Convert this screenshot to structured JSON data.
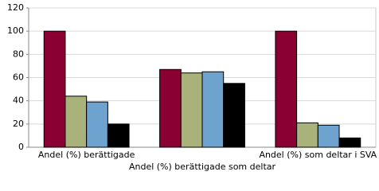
{
  "chart_data": {
    "type": "bar",
    "categories": [
      "Andel (%) berättigade",
      "Andel (%) berättigade som deltar",
      "Andel (%) som deltar i SVA"
    ],
    "series": [
      {
        "color": "#8b0033",
        "values": [
          100,
          67,
          100
        ]
      },
      {
        "color": "#a9b27a",
        "values": [
          44,
          64,
          21
        ]
      },
      {
        "color": "#6fa3cf",
        "values": [
          39,
          65,
          19
        ]
      },
      {
        "color": "#000000",
        "values": [
          20,
          55,
          8
        ]
      }
    ],
    "ylim": [
      0,
      120
    ],
    "yticks": [
      0,
      20,
      40,
      60,
      80,
      100,
      120
    ],
    "grid": true
  }
}
